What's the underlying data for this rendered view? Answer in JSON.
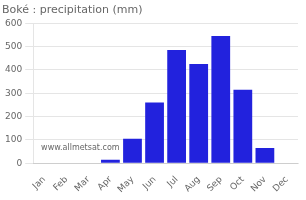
{
  "chart_data": {
    "type": "bar",
    "title": "Boké : precipitation (mm)",
    "categories": [
      "Jan",
      "Feb",
      "Mar",
      "Apr",
      "May",
      "Jun",
      "Jul",
      "Aug",
      "Sep",
      "Oct",
      "Nov",
      "Dec"
    ],
    "values": [
      0,
      0,
      0,
      15,
      105,
      260,
      485,
      425,
      545,
      315,
      65,
      0
    ],
    "color": "#2222dd",
    "ylim": [
      0,
      600
    ],
    "yticks": [
      0,
      100,
      200,
      300,
      400,
      500,
      600
    ],
    "grid": true,
    "annotation": "www.allmetsat.com"
  }
}
